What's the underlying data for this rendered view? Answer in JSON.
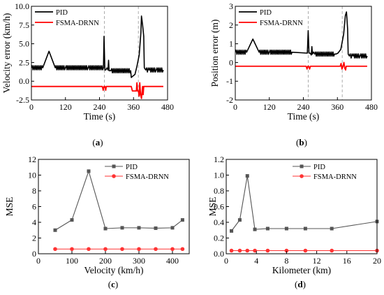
{
  "chart_data": [
    {
      "id": "a",
      "type": "line",
      "caption": "(a)",
      "caption_letter": "a",
      "xlabel": "Time (s)",
      "ylabel": "Velocity error (km/h)",
      "xlim": [
        0,
        480
      ],
      "ylim": [
        -2.5,
        10.0
      ],
      "xticks": [
        0,
        120,
        240,
        360,
        480
      ],
      "yticks": [
        -2.5,
        0.0,
        2.5,
        5.0,
        7.5,
        10.0
      ],
      "ytick_labels": [
        "-2.5",
        "0.0",
        "2.5",
        "5.0",
        "7.5",
        "10.0"
      ],
      "legend_position": "top-left",
      "grid": false,
      "series": [
        {
          "name": "PID",
          "color": "#000000",
          "x": [
            0,
            40,
            62,
            84,
            120,
            200,
            254,
            256,
            259,
            262,
            270,
            272,
            274,
            276,
            280,
            350,
            352,
            355,
            365,
            372,
            380,
            386,
            388,
            392,
            396,
            398,
            403,
            415,
            440,
            465
          ],
          "y": [
            1.8,
            1.8,
            4.0,
            1.8,
            1.8,
            1.8,
            1.8,
            6.0,
            1.5,
            1.5,
            1.5,
            2.8,
            1.4,
            1.4,
            1.4,
            1.4,
            0.5,
            0.6,
            0.9,
            2.0,
            3.5,
            6.5,
            8.7,
            7.5,
            6.0,
            1.8,
            1.5,
            1.5,
            1.5,
            1.5
          ]
        },
        {
          "name": "FSMA-DRNN",
          "color": "#ff0000",
          "x": [
            0,
            250,
            253,
            256,
            259,
            262,
            264,
            267,
            352,
            356,
            365,
            370,
            372,
            374,
            377,
            380,
            382,
            385,
            388,
            392,
            394,
            396,
            465
          ],
          "y": [
            -0.7,
            -0.7,
            -1.2,
            -0.7,
            -0.7,
            -1.2,
            -0.7,
            -0.7,
            -0.7,
            -1.3,
            -1.3,
            -1.3,
            -0.2,
            -1.3,
            -1.3,
            -2.0,
            -0.2,
            -1.8,
            -2.3,
            -0.7,
            -1.8,
            -0.7,
            -0.7
          ]
        }
      ],
      "reference_lines": [
        {
          "axis": "x",
          "value": 257,
          "style": "dashed"
        },
        {
          "axis": "x",
          "value": 377,
          "style": "dashed"
        }
      ]
    },
    {
      "id": "b",
      "type": "line",
      "caption": "(b)",
      "caption_letter": "b",
      "xlabel": "Time (s)",
      "ylabel": "Position error (m)",
      "xlim": [
        0,
        480
      ],
      "ylim": [
        -2,
        3
      ],
      "xticks": [
        0,
        120,
        240,
        360,
        480
      ],
      "yticks": [
        -2,
        -1,
        0,
        1,
        2,
        3
      ],
      "ytick_labels": [
        "-2",
        "-1",
        "0",
        "1",
        "2",
        "3"
      ],
      "legend_position": "top-left",
      "grid": false,
      "series": [
        {
          "name": "PID",
          "color": "#000000",
          "x": [
            0,
            40,
            62,
            84,
            120,
            200,
            254,
            257,
            260,
            264,
            268,
            270,
            272,
            280,
            350,
            355,
            362,
            372,
            382,
            388,
            392,
            396,
            398,
            402,
            415,
            440,
            465
          ],
          "y": [
            0.55,
            0.55,
            1.25,
            0.55,
            0.55,
            0.55,
            0.5,
            1.7,
            0.5,
            0.5,
            0.4,
            0.85,
            0.45,
            0.45,
            0.45,
            0.45,
            0.5,
            0.7,
            1.5,
            2.5,
            2.7,
            1.8,
            0.45,
            0.35,
            0.35,
            0.35,
            0.35
          ]
        },
        {
          "name": "FSMA-DRNN",
          "color": "#ff0000",
          "x": [
            0,
            250,
            253,
            256,
            259,
            262,
            265,
            268,
            360,
            370,
            373,
            376,
            380,
            383,
            386,
            389,
            391,
            465
          ],
          "y": [
            -0.2,
            -0.2,
            -0.35,
            -0.2,
            -0.2,
            -0.35,
            -0.2,
            -0.2,
            -0.2,
            -0.2,
            -0.05,
            -0.35,
            -0.2,
            0.0,
            -0.3,
            -0.4,
            -0.2,
            -0.2
          ]
        }
      ],
      "reference_lines": [
        {
          "axis": "x",
          "value": 257,
          "style": "dashed"
        },
        {
          "axis": "x",
          "value": 377,
          "style": "dashed"
        }
      ]
    },
    {
      "id": "c",
      "type": "line",
      "caption": "(c)",
      "caption_letter": "c",
      "xlabel": "Velocity (km/h)",
      "ylabel": "MSE",
      "xlim": [
        0,
        450
      ],
      "ylim": [
        0,
        12
      ],
      "xticks": [
        0,
        100,
        200,
        300,
        400
      ],
      "yticks": [
        0,
        2,
        4,
        6,
        8,
        10,
        12
      ],
      "ytick_labels": [
        "0",
        "2",
        "4",
        "6",
        "8",
        "10",
        "12"
      ],
      "legend_position": "top-right",
      "grid": false,
      "series": [
        {
          "name": "PID",
          "color": "#555555",
          "marker": "square",
          "x": [
            50,
            100,
            150,
            200,
            250,
            300,
            350,
            400,
            430
          ],
          "y": [
            3.0,
            4.3,
            10.5,
            3.2,
            3.3,
            3.3,
            3.25,
            3.3,
            4.3
          ]
        },
        {
          "name": "FSMA-DRNN",
          "color": "#ff3333",
          "marker": "circle",
          "x": [
            50,
            100,
            150,
            200,
            250,
            300,
            350,
            400,
            430
          ],
          "y": [
            0.6,
            0.6,
            0.6,
            0.6,
            0.6,
            0.6,
            0.6,
            0.6,
            0.6
          ]
        }
      ]
    },
    {
      "id": "d",
      "type": "line",
      "caption": "(d)",
      "caption_letter": "d",
      "xlabel": "Kilometer (km)",
      "ylabel": "MSE",
      "xlim": [
        0,
        20
      ],
      "ylim": [
        0,
        1.2
      ],
      "xticks": [
        0,
        4,
        8,
        12,
        16,
        20
      ],
      "yticks": [
        0.0,
        0.2,
        0.4,
        0.6,
        0.8,
        1.0,
        1.2
      ],
      "ytick_labels": [
        "0.0",
        "0.2",
        "0.4",
        "0.6",
        "0.8",
        "1.0",
        "1.2"
      ],
      "legend_position": "top-right",
      "grid": false,
      "series": [
        {
          "name": "PID",
          "color": "#555555",
          "marker": "square",
          "x": [
            0.7,
            1.8,
            2.8,
            3.8,
            5.5,
            8,
            10.5,
            14,
            20
          ],
          "y": [
            0.29,
            0.43,
            0.99,
            0.31,
            0.32,
            0.32,
            0.32,
            0.32,
            0.41
          ]
        },
        {
          "name": "FSMA-DRNN",
          "color": "#ff3333",
          "marker": "circle",
          "x": [
            0.7,
            1.8,
            2.8,
            3.8,
            5.5,
            8,
            10.5,
            14,
            20
          ],
          "y": [
            0.04,
            0.04,
            0.04,
            0.04,
            0.04,
            0.04,
            0.04,
            0.04,
            0.04
          ]
        }
      ]
    }
  ]
}
